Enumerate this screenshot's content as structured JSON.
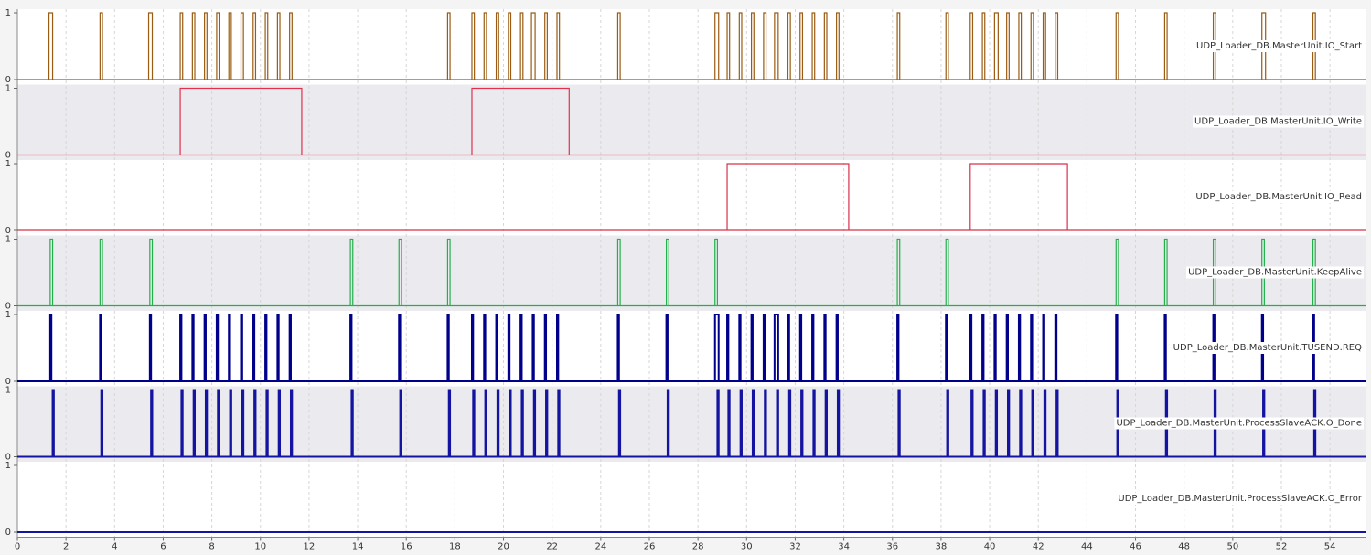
{
  "chart_data": {
    "type": "digital-trace",
    "xlim": [
      0,
      55.5
    ],
    "xticks": [
      0,
      2,
      4,
      6,
      8,
      10,
      12,
      14,
      16,
      18,
      20,
      22,
      24,
      26,
      28,
      30,
      32,
      34,
      36,
      38,
      40,
      42,
      44,
      46,
      48,
      50,
      52,
      54
    ],
    "yticks": [
      0,
      1
    ],
    "grid": true,
    "series": [
      {
        "name": "UDP_Loader_DB.MasterUnit.IO_Start",
        "color": "#9a5b12",
        "pulses": [
          [
            1.3,
            1.45
          ],
          [
            3.4,
            3.5
          ],
          [
            5.4,
            5.55
          ],
          [
            6.7,
            6.8
          ],
          [
            7.2,
            7.3
          ],
          [
            7.7,
            7.8
          ],
          [
            8.2,
            8.3
          ],
          [
            8.7,
            8.8
          ],
          [
            9.2,
            9.3
          ],
          [
            9.7,
            9.8
          ],
          [
            10.2,
            10.3
          ],
          [
            10.7,
            10.8
          ],
          [
            11.2,
            11.3
          ],
          [
            17.7,
            17.8
          ],
          [
            18.7,
            18.8
          ],
          [
            19.2,
            19.3
          ],
          [
            19.7,
            19.8
          ],
          [
            20.2,
            20.3
          ],
          [
            20.7,
            20.8
          ],
          [
            21.15,
            21.3
          ],
          [
            21.7,
            21.8
          ],
          [
            22.2,
            22.3
          ],
          [
            24.7,
            24.8
          ],
          [
            28.7,
            28.85
          ],
          [
            29.2,
            29.3
          ],
          [
            29.7,
            29.8
          ],
          [
            30.2,
            30.3
          ],
          [
            30.7,
            30.8
          ],
          [
            31.15,
            31.3
          ],
          [
            31.7,
            31.8
          ],
          [
            32.2,
            32.3
          ],
          [
            32.7,
            32.8
          ],
          [
            33.2,
            33.3
          ],
          [
            33.7,
            33.8
          ],
          [
            36.2,
            36.3
          ],
          [
            38.2,
            38.3
          ],
          [
            39.2,
            39.3
          ],
          [
            39.7,
            39.8
          ],
          [
            40.2,
            40.35
          ],
          [
            40.7,
            40.8
          ],
          [
            41.2,
            41.3
          ],
          [
            41.7,
            41.8
          ],
          [
            42.2,
            42.3
          ],
          [
            42.7,
            42.8
          ],
          [
            45.2,
            45.3
          ],
          [
            47.2,
            47.3
          ],
          [
            49.2,
            49.3
          ],
          [
            51.2,
            51.35
          ],
          [
            53.3,
            53.4
          ]
        ]
      },
      {
        "name": "UDP_Loader_DB.MasterUnit.IO_Write",
        "color": "#e0304e",
        "pulses": [
          [
            6.7,
            11.7
          ],
          [
            18.7,
            22.7
          ]
        ]
      },
      {
        "name": "UDP_Loader_DB.MasterUnit.IO_Read",
        "color": "#d8304a",
        "pulses": [
          [
            29.2,
            34.2
          ],
          [
            39.2,
            43.2
          ]
        ]
      },
      {
        "name": "UDP_Loader_DB.MasterUnit.KeepAlive",
        "color": "#22b04a",
        "pulses": [
          [
            1.35,
            1.45
          ],
          [
            3.4,
            3.5
          ],
          [
            5.45,
            5.55
          ],
          [
            13.7,
            13.8
          ],
          [
            15.7,
            15.8
          ],
          [
            17.7,
            17.8
          ],
          [
            24.7,
            24.8
          ],
          [
            26.7,
            26.8
          ],
          [
            28.7,
            28.8
          ],
          [
            36.2,
            36.3
          ],
          [
            38.2,
            38.3
          ],
          [
            45.2,
            45.3
          ],
          [
            47.2,
            47.3
          ],
          [
            49.2,
            49.3
          ],
          [
            51.2,
            51.3
          ],
          [
            53.3,
            53.4
          ]
        ]
      },
      {
        "name": "UDP_Loader_DB.MasterUnit.TUSEND.REQ",
        "color": "#00008b",
        "pulses": [
          [
            1.35,
            1.4
          ],
          [
            3.4,
            3.45
          ],
          [
            5.45,
            5.5
          ],
          [
            6.7,
            6.75
          ],
          [
            7.2,
            7.25
          ],
          [
            7.7,
            7.75
          ],
          [
            8.2,
            8.25
          ],
          [
            8.7,
            8.75
          ],
          [
            9.2,
            9.25
          ],
          [
            9.7,
            9.75
          ],
          [
            10.2,
            10.25
          ],
          [
            10.7,
            10.75
          ],
          [
            11.2,
            11.25
          ],
          [
            13.7,
            13.75
          ],
          [
            15.7,
            15.75
          ],
          [
            17.7,
            17.75
          ],
          [
            18.7,
            18.75
          ],
          [
            19.2,
            19.25
          ],
          [
            19.7,
            19.75
          ],
          [
            20.2,
            20.25
          ],
          [
            20.7,
            20.75
          ],
          [
            21.2,
            21.25
          ],
          [
            21.7,
            21.75
          ],
          [
            22.2,
            22.25
          ],
          [
            24.7,
            24.75
          ],
          [
            26.7,
            26.75
          ],
          [
            28.7,
            28.85
          ],
          [
            29.2,
            29.25
          ],
          [
            29.7,
            29.75
          ],
          [
            30.2,
            30.25
          ],
          [
            30.7,
            30.75
          ],
          [
            31.15,
            31.3
          ],
          [
            31.7,
            31.75
          ],
          [
            32.2,
            32.25
          ],
          [
            32.7,
            32.75
          ],
          [
            33.2,
            33.25
          ],
          [
            33.7,
            33.75
          ],
          [
            36.2,
            36.25
          ],
          [
            38.2,
            38.25
          ],
          [
            39.2,
            39.25
          ],
          [
            39.7,
            39.75
          ],
          [
            40.2,
            40.25
          ],
          [
            40.7,
            40.75
          ],
          [
            41.2,
            41.25
          ],
          [
            41.7,
            41.75
          ],
          [
            42.2,
            42.25
          ],
          [
            42.7,
            42.75
          ],
          [
            45.2,
            45.25
          ],
          [
            47.2,
            47.25
          ],
          [
            49.2,
            49.25
          ],
          [
            51.2,
            51.25
          ],
          [
            53.3,
            53.35
          ]
        ]
      },
      {
        "name": "UDP_Loader_DB.MasterUnit.ProcessSlaveACK.O_Done",
        "color": "#1414a0",
        "pulses": [
          [
            1.45,
            1.5
          ],
          [
            3.45,
            3.5
          ],
          [
            5.5,
            5.55
          ],
          [
            6.75,
            6.8
          ],
          [
            7.25,
            7.3
          ],
          [
            7.75,
            7.8
          ],
          [
            8.25,
            8.3
          ],
          [
            8.75,
            8.8
          ],
          [
            9.25,
            9.3
          ],
          [
            9.75,
            9.8
          ],
          [
            10.25,
            10.3
          ],
          [
            10.75,
            10.8
          ],
          [
            11.25,
            11.3
          ],
          [
            13.75,
            13.8
          ],
          [
            15.75,
            15.8
          ],
          [
            17.75,
            17.8
          ],
          [
            18.75,
            18.8
          ],
          [
            19.25,
            19.3
          ],
          [
            19.75,
            19.8
          ],
          [
            20.25,
            20.3
          ],
          [
            20.75,
            20.8
          ],
          [
            21.25,
            21.3
          ],
          [
            21.75,
            21.8
          ],
          [
            22.25,
            22.3
          ],
          [
            24.75,
            24.8
          ],
          [
            26.75,
            26.8
          ],
          [
            28.8,
            28.85
          ],
          [
            29.25,
            29.3
          ],
          [
            29.75,
            29.8
          ],
          [
            30.25,
            30.3
          ],
          [
            30.75,
            30.8
          ],
          [
            31.25,
            31.3
          ],
          [
            31.75,
            31.8
          ],
          [
            32.25,
            32.3
          ],
          [
            32.75,
            32.8
          ],
          [
            33.25,
            33.3
          ],
          [
            33.75,
            33.8
          ],
          [
            36.25,
            36.3
          ],
          [
            38.25,
            38.3
          ],
          [
            39.25,
            39.3
          ],
          [
            39.75,
            39.8
          ],
          [
            40.25,
            40.3
          ],
          [
            40.75,
            40.8
          ],
          [
            41.25,
            41.3
          ],
          [
            41.75,
            41.8
          ],
          [
            42.25,
            42.3
          ],
          [
            42.75,
            42.8
          ],
          [
            45.25,
            45.3
          ],
          [
            47.25,
            47.3
          ],
          [
            49.25,
            49.3
          ],
          [
            51.25,
            51.3
          ],
          [
            53.35,
            53.4
          ]
        ]
      },
      {
        "name": "UDP_Loader_DB.MasterUnit.ProcessSlaveACK.O_Error",
        "color": "#1414a0",
        "pulses": []
      }
    ]
  }
}
